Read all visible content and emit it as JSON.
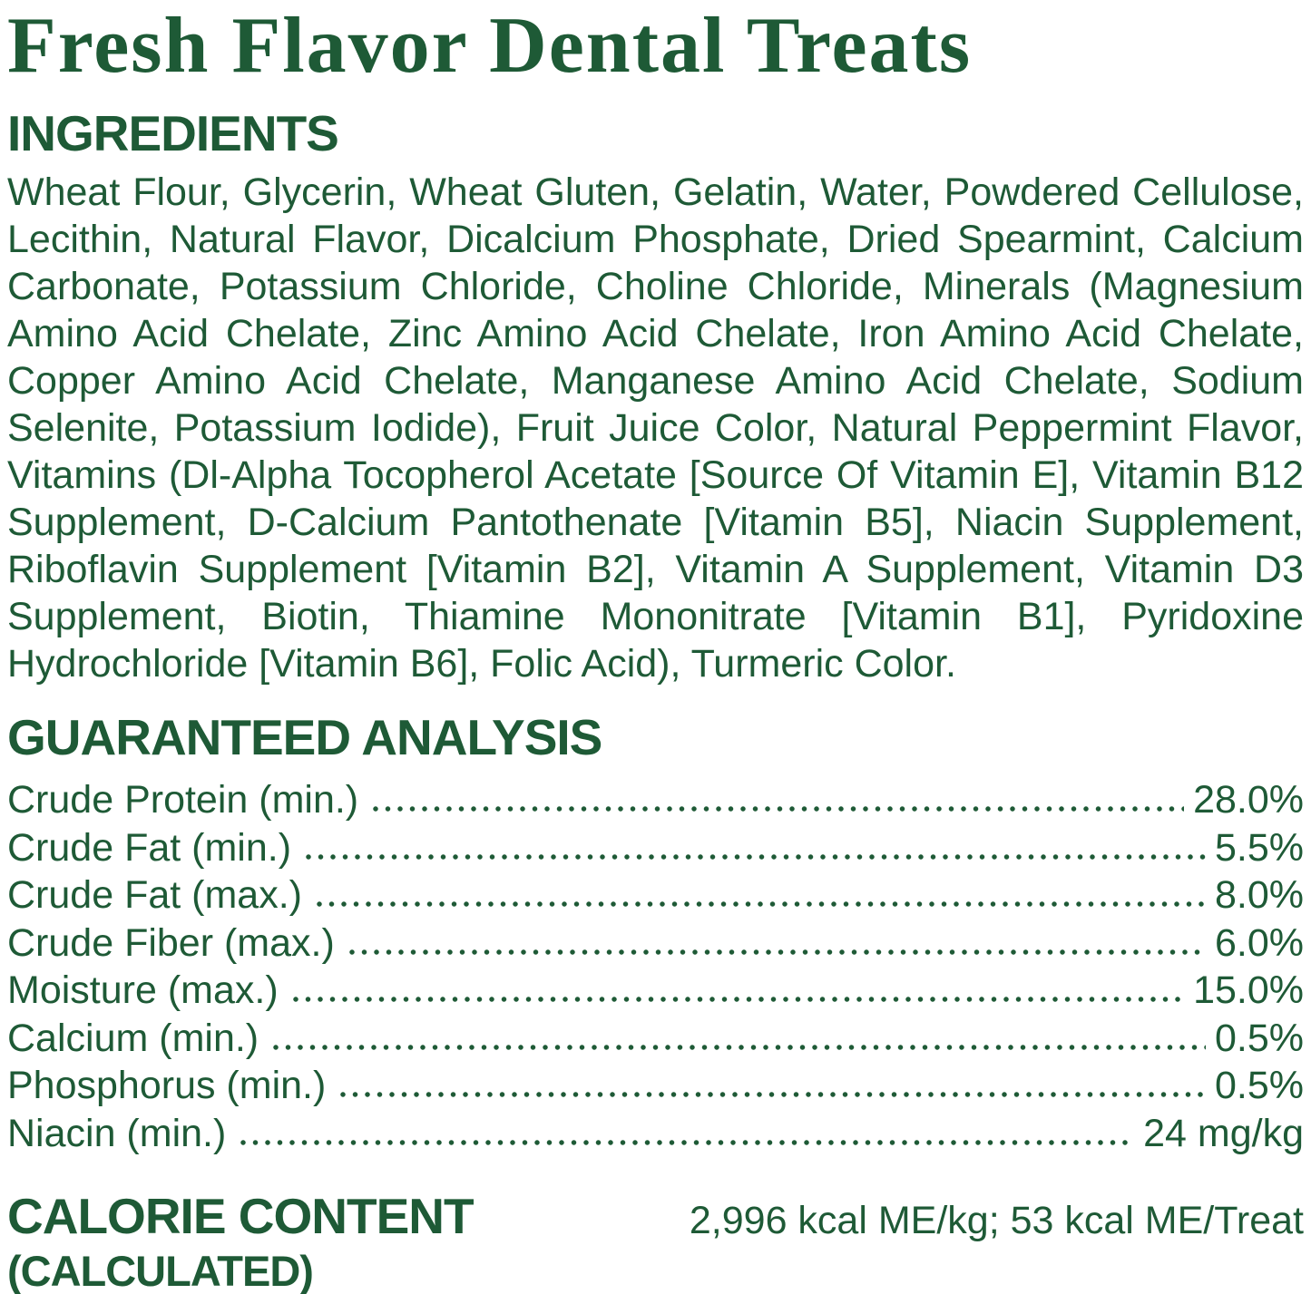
{
  "colors": {
    "text_green": "#1e5a36"
  },
  "title": "Fresh Flavor Dental Treats",
  "ingredients": {
    "heading": "INGREDIENTS",
    "text": "Wheat Flour, Glycerin, Wheat Gluten, Gelatin, Water, Powdered Cellulose, Lecithin, Natural Flavor, Dicalcium Phosphate, Dried Spearmint, Calcium Carbonate, Potassium Chloride, Choline Chloride, Minerals (Magnesium Amino Acid Chelate, Zinc Amino Acid Chelate, Iron Amino Acid Chelate, Copper Amino Acid Chelate, Manganese Amino Acid Chelate, Sodium Selenite, Potassium Iodide), Fruit Juice Color, Natural Peppermint Flavor, Vitamins (Dl-Alpha Tocopherol Acetate [Source Of Vitamin E], Vitamin B12 Supplement, D-Calcium Pantothenate [Vitamin B5], Niacin Supplement, Riboflavin Supplement [Vitamin B2], Vitamin A Supplement, Vitamin D3 Supplement, Biotin, Thiamine Mononitrate [Vitamin B1], Pyridoxine Hydrochloride [Vitamin B6], Folic Acid), Turmeric Color."
  },
  "analysis": {
    "heading": "GUARANTEED ANALYSIS",
    "rows": [
      {
        "label": "Crude Protein (min.)",
        "value": "28.0%"
      },
      {
        "label": "Crude Fat (min.)",
        "value": "5.5%"
      },
      {
        "label": "Crude Fat (max.)",
        "value": "8.0%"
      },
      {
        "label": "Crude Fiber (max.)",
        "value": "6.0%"
      },
      {
        "label": "Moisture (max.)",
        "value": "15.0%"
      },
      {
        "label": "Calcium (min.)",
        "value": "0.5%"
      },
      {
        "label": "Phosphorus (min.)",
        "value": "0.5%"
      },
      {
        "label": "Niacin (min.)",
        "value": "24 mg/kg"
      }
    ]
  },
  "calories": {
    "heading": "CALORIE CONTENT",
    "subheading": "(CALCULATED)",
    "value": "2,996 kcal ME/kg; 53 kcal ME/Treat"
  }
}
